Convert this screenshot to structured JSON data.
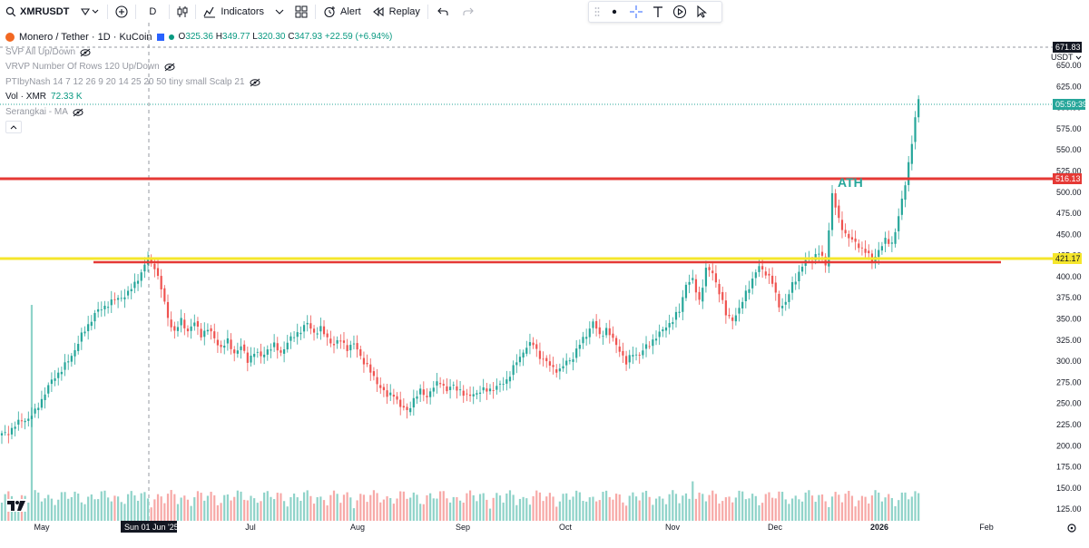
{
  "toolbar": {
    "symbol": "XMRUSDT",
    "interval": "D",
    "indicators_label": "Indicators",
    "alert_label": "Alert",
    "replay_label": "Replay"
  },
  "legend": {
    "title": "Monero / Tether · 1D · KuCoin",
    "open_key": "O",
    "open": "325.36",
    "high_key": "H",
    "high": "349.77",
    "low_key": "L",
    "low": "320.30",
    "close_key": "C",
    "close": "347.93",
    "change": "+22.59 (+6.94%)",
    "indicators": [
      "SVP All Up/Down",
      "VRVP Number Of Rows 120 Up/Down",
      "PTIbyNash 14 7 12 26 9 20 14 25 20 50 tiny small Scalp 21"
    ],
    "vol_label": "Vol · XMR",
    "vol_value": "72.33 K",
    "ma_label": "Serangkai - MA"
  },
  "price_axis": {
    "currency": "USDT",
    "ticks": [
      "650.00",
      "625.00",
      "600.00",
      "575.00",
      "550.00",
      "525.00",
      "500.00",
      "475.00",
      "450.00",
      "425.00",
      "400.00",
      "375.00",
      "350.00",
      "325.00",
      "300.00",
      "275.00",
      "250.00",
      "225.00",
      "200.00",
      "175.00",
      "150.00",
      "125.00"
    ]
  },
  "badges": {
    "top_price": "671.83",
    "countdown": "05:59:39",
    "red_line": "516.13",
    "yellow_line": "421.17"
  },
  "time_axis": {
    "ticks": [
      "May",
      "Jul",
      "Aug",
      "Sep",
      "Oct",
      "Nov",
      "Dec",
      "2026",
      "Feb"
    ],
    "crosshair_date": "Sun 01 Jun '25"
  },
  "annotations": {
    "ath": "ATH"
  },
  "colors": {
    "up": "#26a69a",
    "down": "#ef5350",
    "red_line": "#e53935",
    "yellow_line": "#f5e62c",
    "up_volume": "#8fd3c9",
    "down_volume": "#f7a9a7"
  },
  "chart_data": {
    "type": "candlestick",
    "interval": "1D",
    "horizontal_levels": [
      516.13,
      421.17,
      418
    ],
    "closes": [
      [
        0,
        213
      ],
      [
        2,
        216
      ],
      [
        4,
        224
      ],
      [
        6,
        230
      ],
      [
        8,
        232
      ],
      [
        10,
        240
      ],
      [
        12,
        255
      ],
      [
        14,
        270
      ],
      [
        16,
        282
      ],
      [
        18,
        290
      ],
      [
        20,
        300
      ],
      [
        22,
        314
      ],
      [
        24,
        330
      ],
      [
        26,
        343
      ],
      [
        28,
        356
      ],
      [
        30,
        362
      ],
      [
        32,
        368
      ],
      [
        34,
        372
      ],
      [
        36,
        376
      ],
      [
        38,
        380
      ],
      [
        40,
        392
      ],
      [
        42,
        405
      ],
      [
        44,
        420
      ],
      [
        46,
        413
      ],
      [
        48,
        385
      ],
      [
        50,
        352
      ],
      [
        52,
        334
      ],
      [
        54,
        348
      ],
      [
        56,
        336
      ],
      [
        58,
        345
      ],
      [
        60,
        332
      ],
      [
        62,
        338
      ],
      [
        64,
        327
      ],
      [
        66,
        316
      ],
      [
        68,
        323
      ],
      [
        70,
        310
      ],
      [
        72,
        317
      ],
      [
        74,
        301
      ],
      [
        76,
        311
      ],
      [
        78,
        305
      ],
      [
        80,
        314
      ],
      [
        82,
        318
      ],
      [
        84,
        310
      ],
      [
        86,
        322
      ],
      [
        88,
        330
      ],
      [
        90,
        337
      ],
      [
        92,
        344
      ],
      [
        94,
        334
      ],
      [
        96,
        338
      ],
      [
        98,
        327
      ],
      [
        100,
        320
      ],
      [
        102,
        324
      ],
      [
        104,
        316
      ],
      [
        106,
        320
      ],
      [
        108,
        306
      ],
      [
        110,
        294
      ],
      [
        112,
        280
      ],
      [
        114,
        270
      ],
      [
        116,
        258
      ],
      [
        118,
        262
      ],
      [
        120,
        246
      ],
      [
        122,
        241
      ],
      [
        124,
        255
      ],
      [
        126,
        264
      ],
      [
        128,
        259
      ],
      [
        130,
        269
      ],
      [
        132,
        276
      ],
      [
        134,
        266
      ],
      [
        136,
        270
      ],
      [
        138,
        266
      ],
      [
        140,
        257
      ],
      [
        142,
        262
      ],
      [
        144,
        264
      ],
      [
        146,
        266
      ],
      [
        148,
        268
      ],
      [
        150,
        271
      ],
      [
        152,
        278
      ],
      [
        154,
        292
      ],
      [
        156,
        305
      ],
      [
        158,
        318
      ],
      [
        160,
        320
      ],
      [
        162,
        306
      ],
      [
        164,
        298
      ],
      [
        166,
        292
      ],
      [
        168,
        289
      ],
      [
        170,
        299
      ],
      [
        172,
        305
      ],
      [
        174,
        320
      ],
      [
        176,
        332
      ],
      [
        178,
        346
      ],
      [
        180,
        330
      ],
      [
        182,
        338
      ],
      [
        184,
        325
      ],
      [
        186,
        314
      ],
      [
        188,
        297
      ],
      [
        190,
        310
      ],
      [
        192,
        307
      ],
      [
        194,
        317
      ],
      [
        196,
        325
      ],
      [
        198,
        332
      ],
      [
        200,
        342
      ],
      [
        202,
        348
      ],
      [
        204,
        360
      ],
      [
        206,
        392
      ],
      [
        208,
        395
      ],
      [
        210,
        372
      ],
      [
        212,
        408
      ],
      [
        214,
        405
      ],
      [
        216,
        382
      ],
      [
        218,
        355
      ],
      [
        220,
        350
      ],
      [
        222,
        360
      ],
      [
        224,
        382
      ],
      [
        226,
        396
      ],
      [
        228,
        412
      ],
      [
        230,
        405
      ],
      [
        232,
        392
      ],
      [
        234,
        366
      ],
      [
        236,
        368
      ],
      [
        238,
        391
      ],
      [
        240,
        405
      ],
      [
        242,
        418
      ],
      [
        244,
        422
      ],
      [
        246,
        428
      ],
      [
        248,
        415
      ],
      [
        250,
        498
      ],
      [
        252,
        466
      ],
      [
        254,
        451
      ],
      [
        256,
        442
      ],
      [
        258,
        437
      ],
      [
        260,
        430
      ],
      [
        262,
        418
      ],
      [
        264,
        432
      ],
      [
        266,
        442
      ],
      [
        268,
        440
      ],
      [
        270,
        470
      ],
      [
        272,
        510
      ],
      [
        274,
        560
      ],
      [
        276,
        610
      ]
    ]
  }
}
